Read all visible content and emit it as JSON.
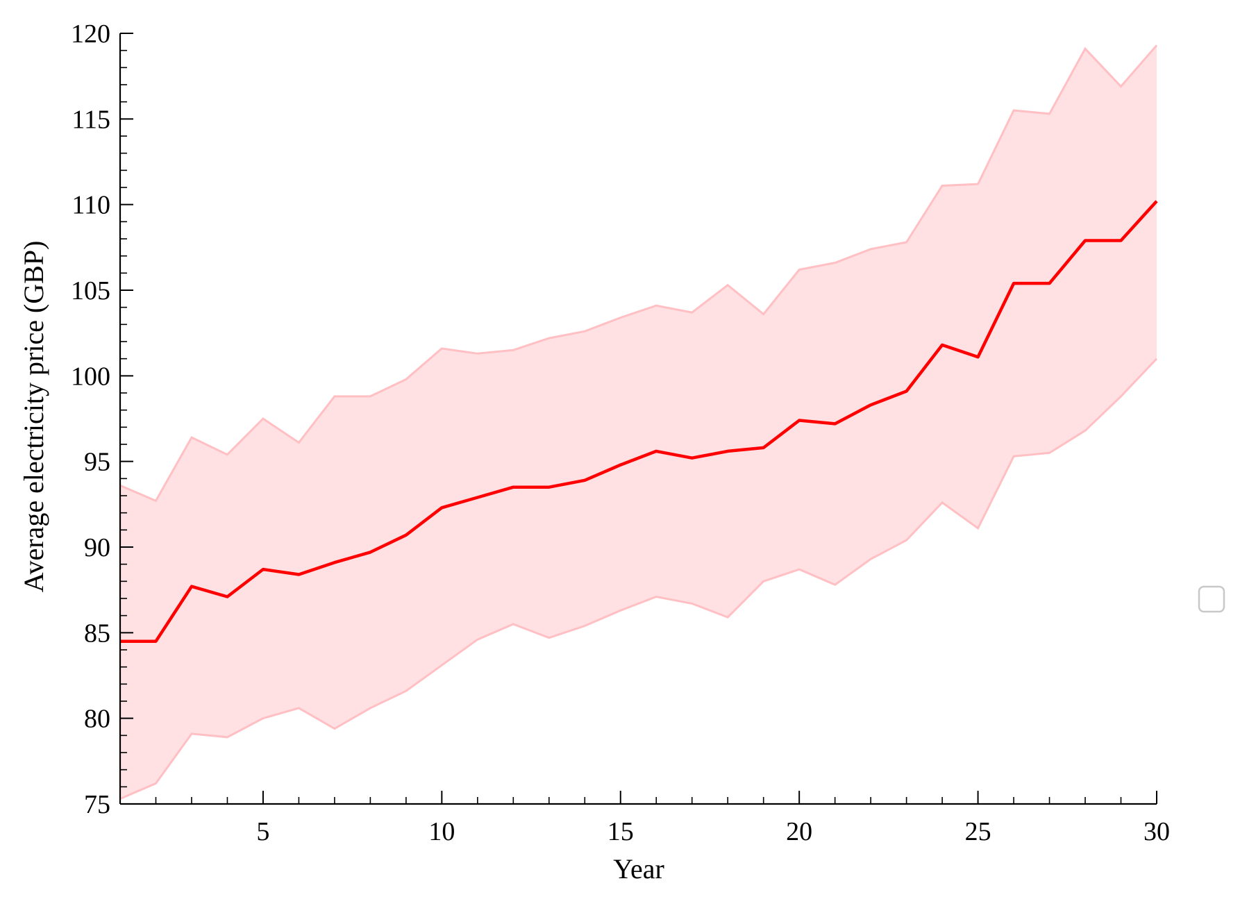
{
  "chart_data": {
    "type": "line",
    "title": "",
    "xlabel": "Year",
    "ylabel": "Average electricity price (GBP)",
    "xlim": [
      1,
      30
    ],
    "ylim": [
      75,
      120
    ],
    "grid": false,
    "x_ticks": [
      5,
      10,
      15,
      20,
      25,
      30
    ],
    "y_ticks": [
      75,
      80,
      85,
      90,
      95,
      100,
      105,
      110,
      115,
      120
    ],
    "x": [
      1,
      2,
      3,
      4,
      5,
      6,
      7,
      8,
      9,
      10,
      11,
      12,
      13,
      14,
      15,
      16,
      17,
      18,
      19,
      20,
      21,
      22,
      23,
      24,
      25,
      26,
      27,
      28,
      29,
      30
    ],
    "series": [
      {
        "values": [
          84.5,
          84.5,
          87.7,
          87.1,
          88.7,
          88.4,
          89.1,
          89.7,
          90.7,
          92.3,
          92.9,
          93.5,
          93.5,
          93.9,
          94.8,
          95.6,
          95.2,
          95.6,
          95.8,
          97.4,
          97.2,
          98.3,
          99.1,
          101.8,
          101.1,
          105.4,
          105.4,
          107.9,
          107.9,
          110.2
        ],
        "lower": [
          75.3,
          76.2,
          79.1,
          78.9,
          80.0,
          80.6,
          79.4,
          80.6,
          81.6,
          83.1,
          84.6,
          85.5,
          84.7,
          85.4,
          86.3,
          87.1,
          86.7,
          85.9,
          88.0,
          88.7,
          87.8,
          89.3,
          90.4,
          92.6,
          91.1,
          95.3,
          95.5,
          96.8,
          98.8,
          101.0
        ],
        "upper": [
          93.6,
          92.7,
          96.4,
          95.4,
          97.5,
          96.1,
          98.8,
          98.8,
          99.8,
          101.6,
          101.3,
          101.5,
          102.2,
          102.6,
          103.4,
          104.1,
          103.7,
          105.3,
          103.6,
          106.2,
          106.6,
          107.4,
          107.8,
          111.1,
          111.2,
          115.5,
          115.3,
          119.1,
          116.9,
          119.3
        ],
        "line_color": "#ff0000",
        "band_fill": "#ffe1e4",
        "band_edge": "#ffbfc3"
      }
    ],
    "legend": {
      "entries": []
    }
  }
}
